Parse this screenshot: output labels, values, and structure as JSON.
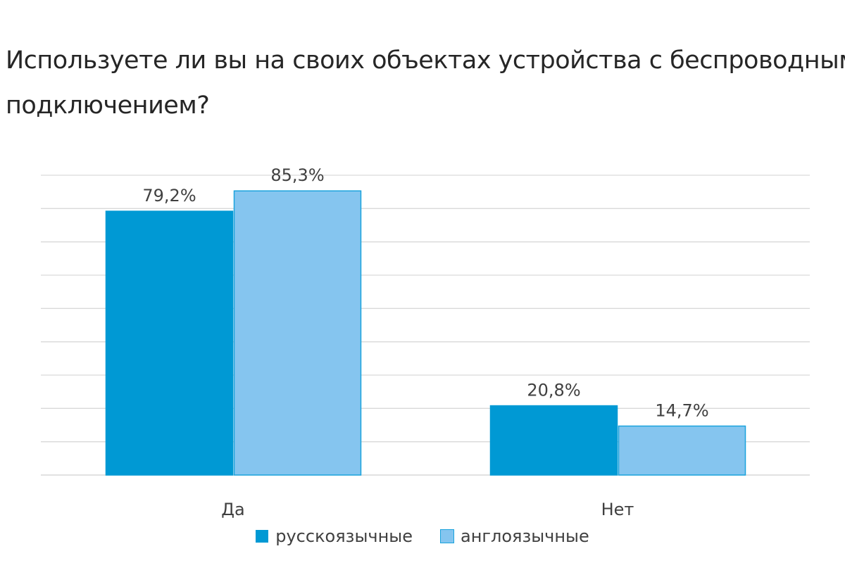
{
  "chart_data": {
    "type": "bar",
    "title_lines": [
      "Используете ли вы на своих объектах устройства с беспроводным",
      "подключением?"
    ],
    "categories": [
      "Да",
      "Нет"
    ],
    "series": [
      {
        "name": "русскоязычные",
        "values": [
          79.2,
          20.8
        ],
        "labels": [
          "79,2%",
          "20,8%"
        ],
        "color": "#0099d4",
        "border": "#0099d4"
      },
      {
        "name": "англоязычные",
        "values": [
          85.3,
          14.7
        ],
        "labels": [
          "85,3%",
          "14,7%"
        ],
        "color": "#85c5ef",
        "border": "#1aa3dd"
      }
    ],
    "ylim": [
      0,
      90
    ],
    "ystep": 10,
    "grid": true,
    "legend_position": "bottom"
  }
}
